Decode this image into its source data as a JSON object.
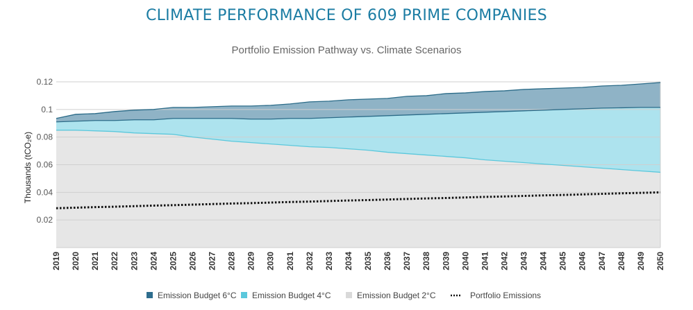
{
  "title": "CLIMATE PERFORMANCE OF 609 PRIME COMPANIES",
  "chart_data": {
    "type": "area",
    "title": "Portfolio Emission Pathway vs. Climate Scenarios",
    "xlabel": "",
    "ylabel": "Thousands (tCO₂e)",
    "ylim": [
      0,
      0.12
    ],
    "yticks": [
      "0.02",
      "0.04",
      "0.06",
      "0.08",
      "0.1",
      "0.12"
    ],
    "ytick_values": [
      0.02,
      0.04,
      0.06,
      0.08,
      0.1,
      0.12
    ],
    "grid": true,
    "legend_position": "bottom",
    "x": [
      "2019",
      "2020",
      "2021",
      "2022",
      "2023",
      "2024",
      "2025",
      "2026",
      "2027",
      "2028",
      "2029",
      "2030",
      "2031",
      "2032",
      "2033",
      "2034",
      "2035",
      "2036",
      "2037",
      "2038",
      "2039",
      "2040",
      "2041",
      "2042",
      "2043",
      "2044",
      "2045",
      "2046",
      "2047",
      "2048",
      "2049",
      "2050"
    ],
    "series": [
      {
        "name": "Emission Budget 6°C",
        "kind": "area",
        "fill": "#8fb3c6",
        "line": "#2b6b88",
        "swatch": "#2e6d8e",
        "values": [
          0.0935,
          0.0965,
          0.097,
          0.0985,
          0.0995,
          0.1,
          0.1015,
          0.1015,
          0.102,
          0.1025,
          0.1025,
          0.103,
          0.104,
          0.1055,
          0.106,
          0.107,
          0.1075,
          0.108,
          0.1095,
          0.11,
          0.1115,
          0.112,
          0.113,
          0.1135,
          0.1145,
          0.115,
          0.1155,
          0.116,
          0.117,
          0.1175,
          0.1185,
          0.1195
        ]
      },
      {
        "name": "Emission Budget 4°C",
        "kind": "area",
        "fill": "#ade3ee",
        "line": "#2b6b88",
        "swatch": "#5bc8dc",
        "values": [
          0.091,
          0.0915,
          0.092,
          0.092,
          0.0925,
          0.0925,
          0.0935,
          0.0935,
          0.0935,
          0.0935,
          0.093,
          0.093,
          0.0935,
          0.0935,
          0.094,
          0.0945,
          0.095,
          0.0955,
          0.096,
          0.0965,
          0.097,
          0.0975,
          0.098,
          0.0985,
          0.099,
          0.0995,
          0.1,
          0.1005,
          0.101,
          0.1012,
          0.1015,
          0.1015
        ]
      },
      {
        "name": "Emission Budget 2°C",
        "kind": "area",
        "fill": "#e6e6e6",
        "line": "#5bc8dc",
        "swatch": "#d9d9d9",
        "values": [
          0.085,
          0.085,
          0.0845,
          0.084,
          0.083,
          0.0825,
          0.082,
          0.08,
          0.0785,
          0.077,
          0.076,
          0.075,
          0.074,
          0.073,
          0.0725,
          0.0715,
          0.0705,
          0.069,
          0.068,
          0.067,
          0.066,
          0.065,
          0.0635,
          0.0625,
          0.0615,
          0.0605,
          0.0595,
          0.0585,
          0.0575,
          0.0565,
          0.0555,
          0.0545
        ]
      },
      {
        "name": "Portfolio Emissions",
        "kind": "dotted-line",
        "line": "#111111",
        "values": [
          0.0285,
          0.0289,
          0.0293,
          0.0296,
          0.03,
          0.0304,
          0.0307,
          0.0311,
          0.0315,
          0.0319,
          0.0322,
          0.0326,
          0.033,
          0.0333,
          0.0337,
          0.0341,
          0.0344,
          0.0348,
          0.0352,
          0.0356,
          0.0359,
          0.0363,
          0.0367,
          0.037,
          0.0374,
          0.0378,
          0.0381,
          0.0385,
          0.0389,
          0.0393,
          0.0396,
          0.04
        ]
      }
    ]
  }
}
